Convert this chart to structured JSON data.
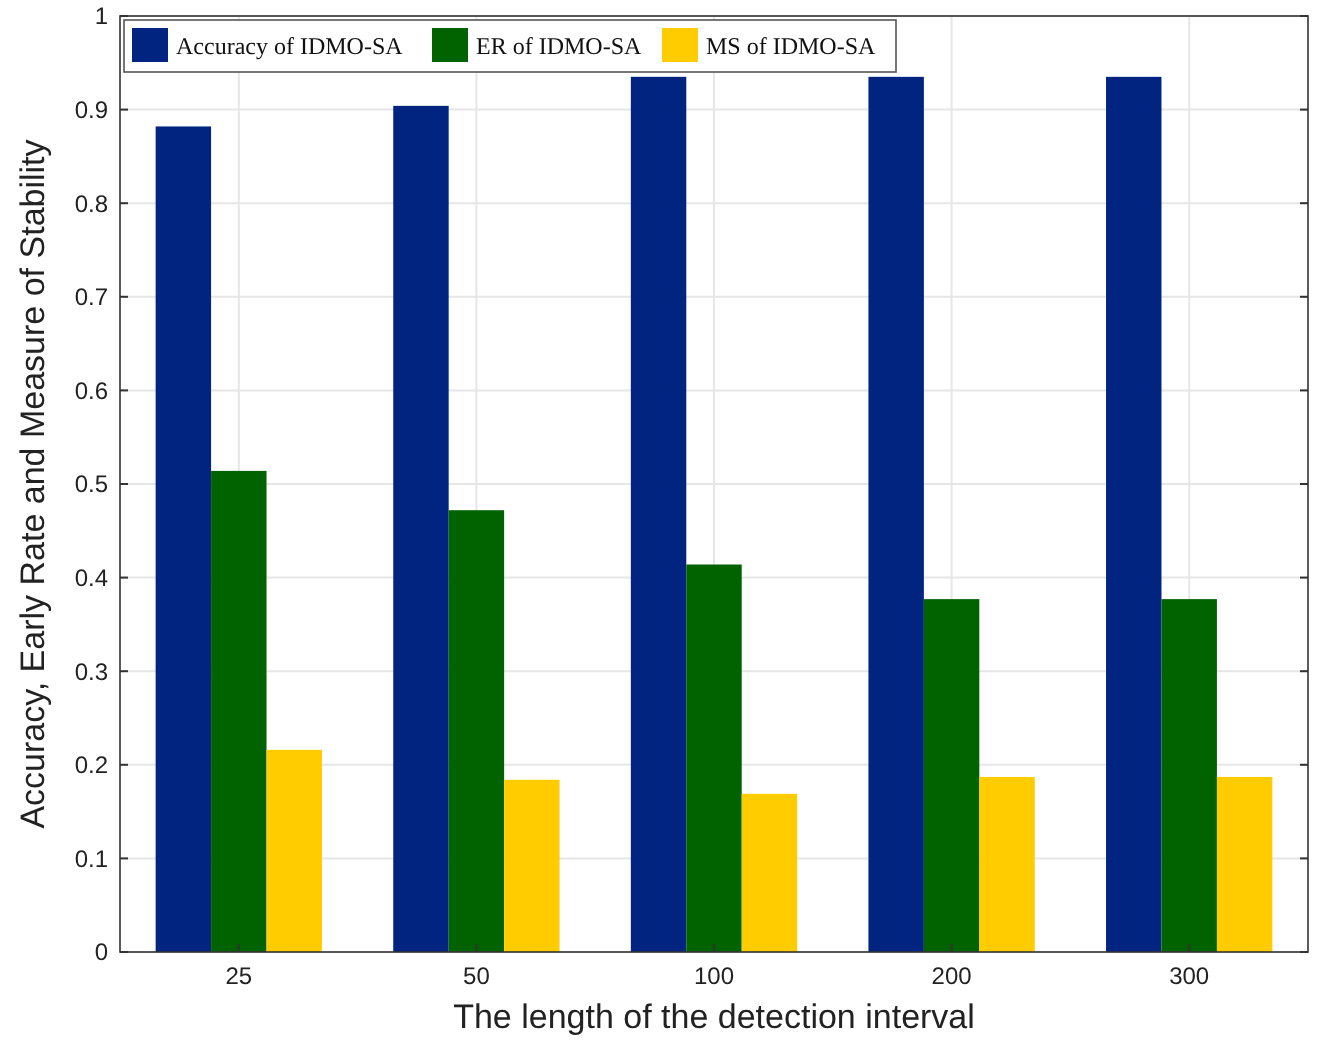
{
  "chart_data": {
    "type": "bar",
    "xlabel": "The length of the detection interval",
    "ylabel": "Accuracy, Early Rate and Measure of Stability",
    "categories": [
      "25",
      "50",
      "100",
      "200",
      "300"
    ],
    "series": [
      {
        "name": "Accuracy of IDMO-SA",
        "color": "#012480",
        "values": [
          0.882,
          0.904,
          0.935,
          0.935,
          0.935
        ]
      },
      {
        "name": "ER of IDMO-SA",
        "color": "#016300",
        "values": [
          0.514,
          0.472,
          0.414,
          0.377,
          0.377
        ]
      },
      {
        "name": "MS of IDMO-SA",
        "color": "#ffcc00",
        "values": [
          0.216,
          0.184,
          0.169,
          0.187,
          0.187
        ]
      }
    ],
    "ylim": [
      0,
      1
    ],
    "yticks": [
      0,
      0.1,
      0.2,
      0.3,
      0.4,
      0.5,
      0.6,
      0.7,
      0.8,
      0.9,
      1
    ],
    "grid": true,
    "legend": "top left"
  }
}
